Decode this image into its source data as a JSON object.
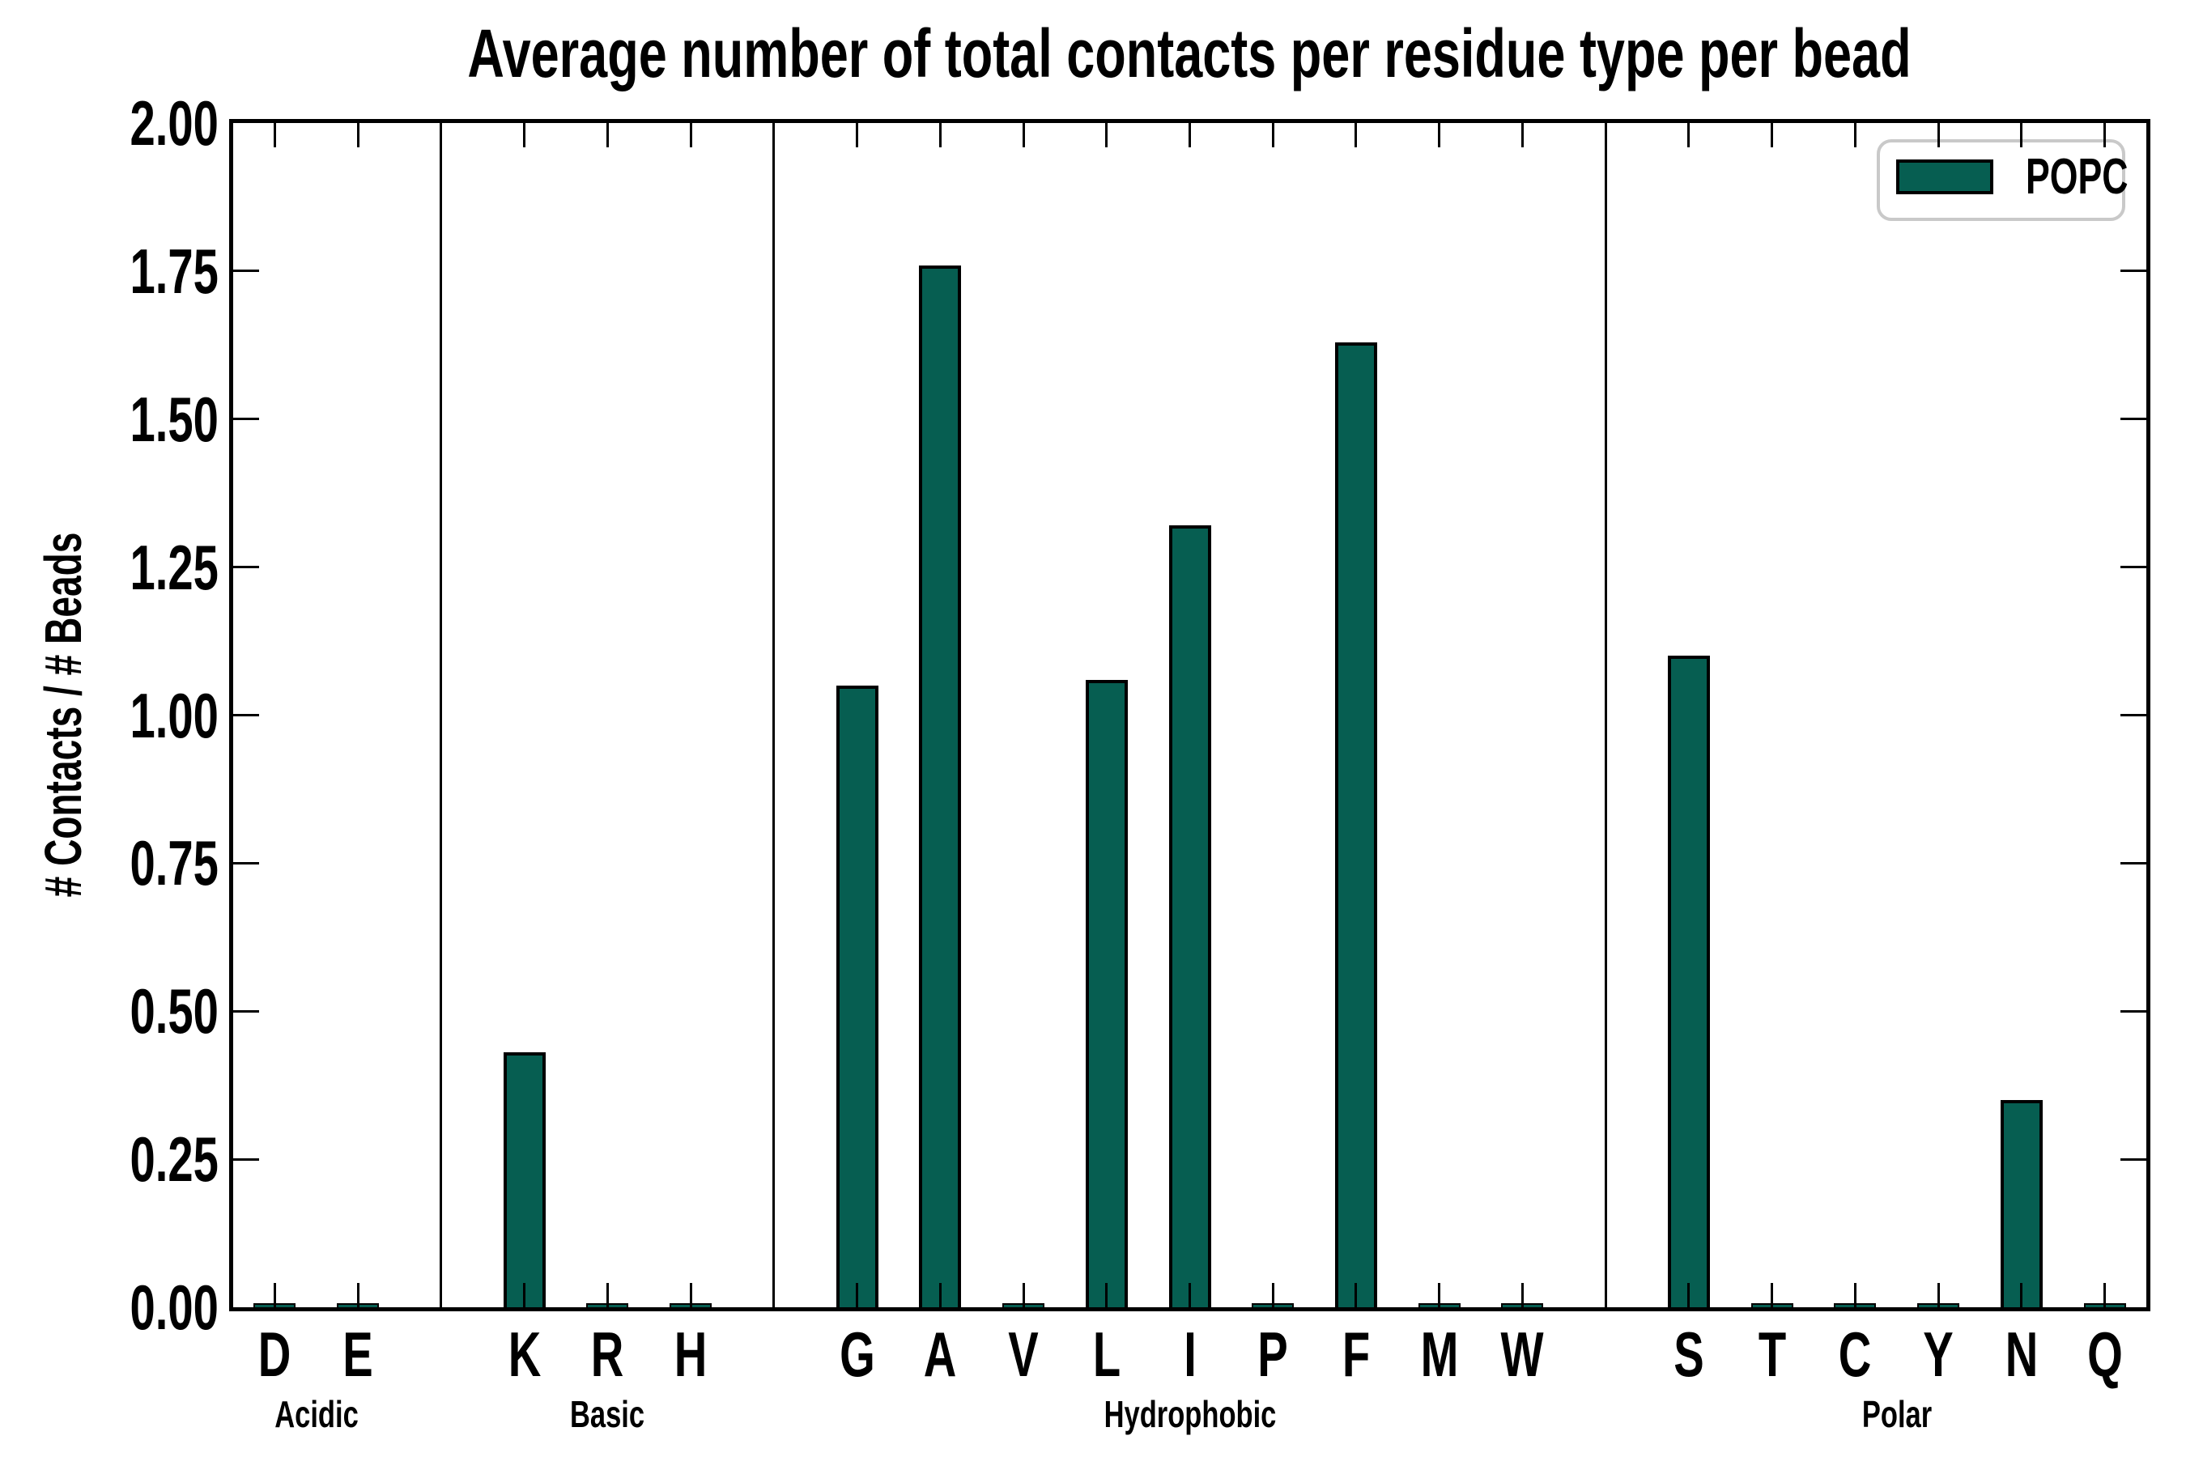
{
  "chart_data": {
    "type": "bar",
    "title": "Average number of total contacts per residue type per bead",
    "xlabel": "",
    "ylabel": "# Contacts / # Beads",
    "ylim": [
      0.0,
      2.0
    ],
    "ytick_step": 0.25,
    "ytick_labels": [
      "0.00",
      "0.25",
      "0.50",
      "0.75",
      "1.00",
      "1.25",
      "1.50",
      "1.75",
      "2.00"
    ],
    "grid": false,
    "legend": [
      {
        "label": "POPC",
        "color": "#065E51"
      }
    ],
    "legend_position": "upper right",
    "bar_color": "#065E51",
    "bar_edge_color": "#000000",
    "groups": [
      {
        "name": "Acidic",
        "categories": [
          "D",
          "E"
        ],
        "values": [
          0.004,
          0.004
        ]
      },
      {
        "name": "Basic",
        "categories": [
          "K",
          "R",
          "H"
        ],
        "values": [
          0.43,
          0.004,
          0.004
        ]
      },
      {
        "name": "Hydrophobic",
        "categories": [
          "G",
          "A",
          "V",
          "L",
          "I",
          "P",
          "F",
          "M",
          "W"
        ],
        "values": [
          1.05,
          1.76,
          0.004,
          1.06,
          1.32,
          0.004,
          1.63,
          0.004,
          0.004
        ]
      },
      {
        "name": "Polar",
        "categories": [
          "S",
          "T",
          "C",
          "Y",
          "N",
          "Q"
        ],
        "values": [
          1.1,
          0.004,
          0.004,
          0.004,
          0.35,
          0.004
        ]
      }
    ]
  }
}
